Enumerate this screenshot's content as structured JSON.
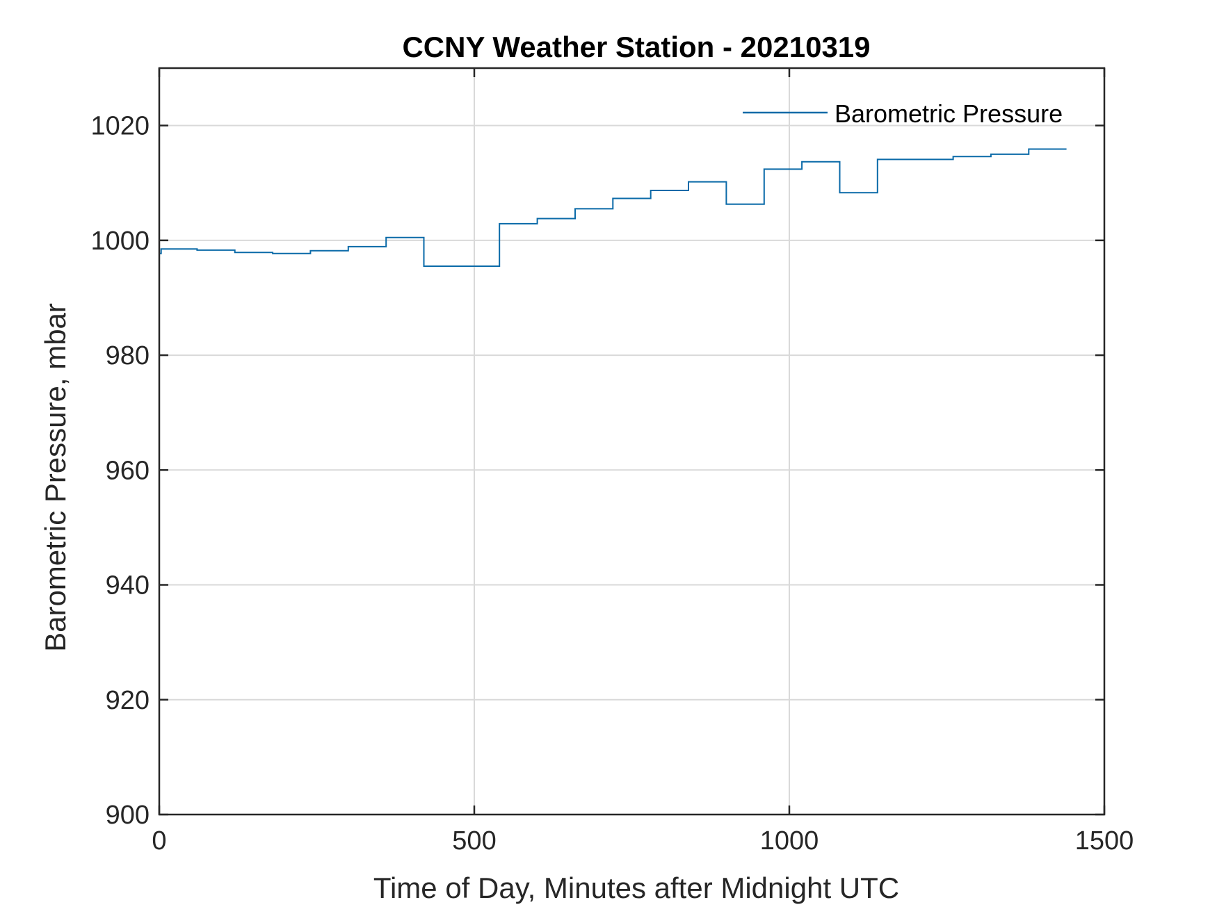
{
  "chart_data": {
    "type": "line",
    "title": "CCNY Weather Station - 20210319",
    "xlabel": "Time of Day, Minutes after Midnight UTC",
    "ylabel": "Barometric Pressure, mbar",
    "xlim": [
      0,
      1500
    ],
    "ylim": [
      900,
      1030
    ],
    "xticks": [
      0,
      500,
      1000,
      1500
    ],
    "yticks": [
      900,
      920,
      940,
      960,
      980,
      1000,
      1020
    ],
    "xtick_labels": [
      "0",
      "500",
      "1000",
      "1500"
    ],
    "ytick_labels": [
      "900",
      "920",
      "940",
      "960",
      "980",
      "1000",
      "1020"
    ],
    "grid": true,
    "legend_position": "top-right",
    "series": [
      {
        "name": "Barometric Pressure",
        "color": "#0a6aa8",
        "step": true,
        "x": [
          0,
          3,
          60,
          120,
          180,
          240,
          300,
          360,
          420,
          540,
          600,
          660,
          720,
          780,
          840,
          900,
          960,
          1020,
          1080,
          1140,
          1200,
          1260,
          1320,
          1380,
          1440
        ],
        "y": [
          997.7,
          998.5,
          998.3,
          997.9,
          997.7,
          998.2,
          998.9,
          1000.5,
          995.5,
          1002.9,
          1003.8,
          1005.5,
          1007.3,
          1008.7,
          1010.2,
          1006.3,
          1012.4,
          1013.7,
          1008.3,
          1014.1,
          1014.1,
          1014.6,
          1015.0,
          1015.9,
          1015.9
        ]
      }
    ]
  }
}
